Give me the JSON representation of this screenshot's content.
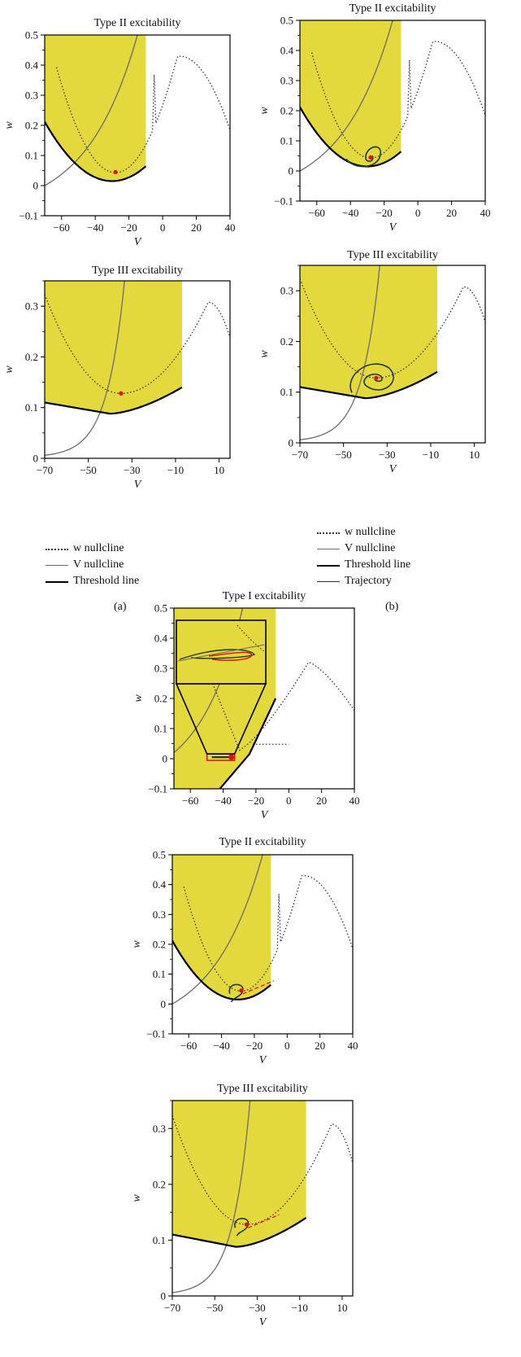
{
  "colors": {
    "region": "#e3d93c",
    "dot": "#e11111",
    "wnull": "#333333",
    "vnull": "#6b6b6b",
    "thresh": "#000000",
    "traj": "#1d3a2c"
  },
  "legend": {
    "a": [
      "w nullcline",
      "V nullcline",
      "Threshold line"
    ],
    "b": [
      "w nullcline",
      "V nullcline",
      "Threshold line",
      "Trajectory"
    ]
  },
  "panel_labels": {
    "a": "(a)",
    "b": "(b)"
  },
  "chart_data": [
    {
      "id": "a1",
      "type": "line",
      "title": "Type II excitability",
      "xlabel": "V",
      "ylabel": "w",
      "xlim": [
        -70,
        40
      ],
      "ylim": [
        -0.1,
        0.5
      ],
      "xticks": [
        -60,
        -40,
        -20,
        0,
        20,
        40
      ],
      "yticks": [
        -0.1,
        0.0,
        0.1,
        0.2,
        0.3,
        0.4,
        0.5
      ],
      "region": {
        "x_end": -10
      },
      "fixed_point": [
        -28,
        0.045
      ],
      "trajectory": false
    },
    {
      "id": "b1",
      "type": "line",
      "title": "Type II excitability",
      "xlabel": "V",
      "ylabel": "w",
      "xlim": [
        -70,
        40
      ],
      "ylim": [
        -0.1,
        0.5
      ],
      "xticks": [
        -60,
        -40,
        -20,
        0,
        20,
        40
      ],
      "yticks": [
        -0.1,
        0.0,
        0.1,
        0.2,
        0.3,
        0.4,
        0.5
      ],
      "region": {
        "x_end": -10
      },
      "fixed_point": [
        -28,
        0.045
      ],
      "trajectory": "loop"
    },
    {
      "id": "a2",
      "type": "line",
      "title": "Type III excitability",
      "xlabel": "V",
      "ylabel": "w",
      "xlim": [
        -70,
        15
      ],
      "ylim": [
        0,
        0.35
      ],
      "xticks": [
        -70,
        -50,
        -30,
        -10,
        10
      ],
      "yticks": [
        0.0,
        0.1,
        0.2,
        0.3
      ],
      "region": {
        "x_end": -7
      },
      "fixed_point": [
        -35,
        0.128
      ],
      "trajectory": false
    },
    {
      "id": "b2",
      "type": "line",
      "title": "Type III excitability",
      "xlabel": "V",
      "ylabel": "w",
      "xlim": [
        -70,
        15
      ],
      "ylim": [
        0,
        0.35
      ],
      "xticks": [
        -70,
        -50,
        -30,
        -10,
        10
      ],
      "yticks": [
        0.0,
        0.1,
        0.2,
        0.3
      ],
      "region": {
        "x_end": -7
      },
      "fixed_point": [
        -35,
        0.128
      ],
      "trajectory": "spiral"
    },
    {
      "id": "c1",
      "type": "line",
      "title": "Type I excitability",
      "xlabel": "V",
      "ylabel": "w",
      "xlim": [
        -70,
        40
      ],
      "ylim": [
        -0.1,
        0.5
      ],
      "xticks": [
        -60,
        -40,
        -20,
        0,
        20,
        40
      ],
      "yticks": [
        -0.1,
        0.0,
        0.1,
        0.2,
        0.3,
        0.4,
        0.5
      ],
      "region": {
        "x_end": -8
      },
      "fixed_point": [
        -35,
        0.005
      ],
      "trajectory": "inset"
    },
    {
      "id": "c2",
      "type": "line",
      "title": "Type II excitability",
      "xlabel": "V",
      "ylabel": "w",
      "xlim": [
        -70,
        40
      ],
      "ylim": [
        -0.1,
        0.5
      ],
      "xticks": [
        -60,
        -40,
        -20,
        0,
        20,
        40
      ],
      "yticks": [
        -0.1,
        0.0,
        0.1,
        0.2,
        0.3,
        0.4,
        0.5
      ],
      "region": {
        "x_end": -10
      },
      "fixed_point": [
        -28,
        0.045
      ],
      "trajectory": "small"
    },
    {
      "id": "c3",
      "type": "line",
      "title": "Type III excitability",
      "xlabel": "V",
      "ylabel": "w",
      "xlim": [
        -70,
        15
      ],
      "ylim": [
        0,
        0.35
      ],
      "xticks": [
        -70,
        -50,
        -30,
        -10,
        10
      ],
      "yticks": [
        0.0,
        0.1,
        0.2,
        0.3
      ],
      "region": {
        "x_end": -7
      },
      "fixed_point": [
        -35,
        0.128
      ],
      "trajectory": "small"
    }
  ]
}
